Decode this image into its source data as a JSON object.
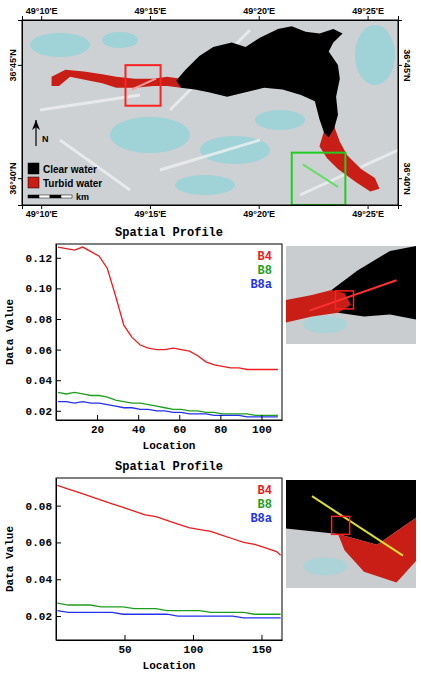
{
  "chart_data": [
    {
      "type": "map",
      "xlim": [
        49.152,
        49.44
      ],
      "ylim": [
        36.647,
        36.783
      ],
      "xticks": [
        {
          "value": 49.1667,
          "label": "49°10'E"
        },
        {
          "value": 49.25,
          "label": "49°15'E"
        },
        {
          "value": 49.3333,
          "label": "49°20'E"
        },
        {
          "value": 49.4167,
          "label": "49°25'E"
        }
      ],
      "yticks": [
        {
          "value": 36.6667,
          "label": "36°40'N"
        },
        {
          "value": 36.75,
          "label": "36°45'N"
        }
      ],
      "series": [
        {
          "name": "Clear water",
          "color": "#000000"
        },
        {
          "name": "Turbid water",
          "color": "#c81e16"
        }
      ],
      "legend": "bottom left",
      "annotations": [
        "N",
        "km"
      ]
    },
    {
      "type": "line",
      "title": "Spatial Profile",
      "x_label": "Location",
      "y_label": "Data Value",
      "x": [
        1,
        5,
        9,
        13,
        17,
        21,
        25,
        29,
        33,
        37,
        41,
        45,
        49,
        53,
        57,
        61,
        65,
        69,
        73,
        77,
        81,
        85,
        89,
        93,
        97,
        101,
        105,
        108
      ],
      "series": [
        {
          "name": "B4",
          "color": "#ee1c1c",
          "values": [
            0.127,
            0.126,
            0.125,
            0.127,
            0.124,
            0.121,
            0.113,
            0.095,
            0.076,
            0.068,
            0.063,
            0.061,
            0.06,
            0.06,
            0.061,
            0.06,
            0.059,
            0.056,
            0.052,
            0.05,
            0.049,
            0.048,
            0.048,
            0.047,
            0.047,
            0.047,
            0.047,
            0.047
          ]
        },
        {
          "name": "B8",
          "color": "#1e9e1e",
          "values": [
            0.032,
            0.031,
            0.032,
            0.031,
            0.03,
            0.03,
            0.029,
            0.027,
            0.026,
            0.025,
            0.025,
            0.024,
            0.023,
            0.022,
            0.021,
            0.021,
            0.02,
            0.02,
            0.019,
            0.019,
            0.018,
            0.018,
            0.018,
            0.018,
            0.017,
            0.017,
            0.017,
            0.017
          ]
        },
        {
          "name": "B8a",
          "color": "#2233ee",
          "values": [
            0.026,
            0.026,
            0.025,
            0.026,
            0.025,
            0.025,
            0.024,
            0.023,
            0.022,
            0.022,
            0.021,
            0.021,
            0.02,
            0.02,
            0.019,
            0.019,
            0.018,
            0.018,
            0.018,
            0.017,
            0.017,
            0.017,
            0.017,
            0.016,
            0.016,
            0.016,
            0.016,
            0.016
          ]
        }
      ],
      "xlim": [
        0,
        110
      ],
      "ylim": [
        0.014,
        0.129
      ],
      "xticks": [
        20,
        40,
        60,
        80,
        100
      ],
      "yticks": [
        0.02,
        0.04,
        0.06,
        0.08,
        {
          "value": 0.1,
          "label": "0.10"
        },
        0.12
      ],
      "legend": "top right"
    },
    {
      "type": "line",
      "title": "Spatial Profile",
      "x_label": "Location",
      "y_label": "Data Value",
      "x": [
        1,
        9,
        17,
        25,
        33,
        41,
        49,
        57,
        65,
        73,
        81,
        89,
        97,
        105,
        113,
        121,
        129,
        137,
        145,
        153,
        161,
        164
      ],
      "series": [
        {
          "name": "B4",
          "color": "#ee1c1c",
          "values": [
            0.091,
            0.089,
            0.087,
            0.085,
            0.083,
            0.081,
            0.079,
            0.077,
            0.075,
            0.074,
            0.072,
            0.07,
            0.068,
            0.067,
            0.066,
            0.064,
            0.062,
            0.06,
            0.059,
            0.057,
            0.055,
            0.053
          ]
        },
        {
          "name": "B8",
          "color": "#1e9e1e",
          "values": [
            0.027,
            0.026,
            0.026,
            0.026,
            0.025,
            0.025,
            0.025,
            0.024,
            0.024,
            0.024,
            0.023,
            0.023,
            0.023,
            0.023,
            0.022,
            0.022,
            0.022,
            0.022,
            0.021,
            0.021,
            0.021,
            0.021
          ]
        },
        {
          "name": "B8a",
          "color": "#2233ee",
          "values": [
            0.023,
            0.022,
            0.022,
            0.022,
            0.022,
            0.022,
            0.021,
            0.021,
            0.021,
            0.021,
            0.021,
            0.02,
            0.02,
            0.02,
            0.02,
            0.02,
            0.02,
            0.019,
            0.019,
            0.019,
            0.019,
            0.019
          ]
        }
      ],
      "xlim": [
        0,
        165
      ],
      "ylim": [
        0.007,
        0.095
      ],
      "xticks": [
        50,
        100,
        150
      ],
      "yticks": [
        0.02,
        0.04,
        0.06,
        0.08
      ],
      "legend": "top right"
    }
  ]
}
